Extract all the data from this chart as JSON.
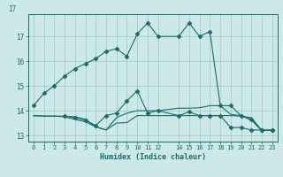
{
  "xlabel": "Humidex (Indice chaleur)",
  "bg_color": "#cde8e8",
  "grid_color": "#9fc8c8",
  "line_color": "#1a6b6b",
  "xlim": [
    -0.5,
    23.5
  ],
  "ylim": [
    12.75,
    17.9
  ],
  "xticks": [
    0,
    1,
    2,
    3,
    4,
    5,
    6,
    7,
    8,
    9,
    10,
    11,
    12,
    14,
    15,
    16,
    17,
    18,
    19,
    20,
    21,
    22,
    23
  ],
  "yticks": [
    13,
    14,
    15,
    16,
    17
  ],
  "ytop_label": "17",
  "series": [
    {
      "x": [
        0,
        1,
        2,
        3,
        4,
        5,
        6,
        7,
        8,
        9,
        10,
        11,
        12,
        14,
        15,
        16,
        17,
        18,
        19,
        20,
        21,
        22,
        23
      ],
      "y": [
        14.2,
        14.7,
        15.0,
        15.4,
        15.7,
        15.9,
        16.1,
        16.4,
        16.5,
        16.2,
        17.1,
        17.55,
        17.0,
        17.0,
        17.55,
        17.0,
        17.2,
        14.2,
        14.2,
        13.8,
        13.65,
        13.2,
        13.2
      ],
      "marker": "D",
      "markersize": 2.5
    },
    {
      "x": [
        0,
        1,
        2,
        3,
        4,
        5,
        6,
        7,
        8,
        9,
        10,
        11,
        12,
        14,
        15,
        16,
        17,
        18,
        19,
        20,
        21,
        22,
        23
      ],
      "y": [
        13.8,
        13.78,
        13.78,
        13.78,
        13.75,
        13.65,
        13.35,
        13.22,
        13.5,
        13.52,
        13.8,
        13.8,
        13.8,
        13.8,
        13.8,
        13.8,
        13.8,
        13.8,
        13.8,
        13.78,
        13.72,
        13.2,
        13.2
      ],
      "marker": null,
      "markersize": 0
    },
    {
      "x": [
        0,
        1,
        2,
        3,
        4,
        5,
        6,
        7,
        8,
        9,
        10,
        11,
        12,
        14,
        15,
        16,
        17,
        18,
        19,
        20,
        21,
        22,
        23
      ],
      "y": [
        13.8,
        13.78,
        13.78,
        13.75,
        13.65,
        13.55,
        13.35,
        13.22,
        13.72,
        13.9,
        14.0,
        14.0,
        14.0,
        14.1,
        14.1,
        14.12,
        14.2,
        14.2,
        13.85,
        13.8,
        13.62,
        13.2,
        13.2
      ],
      "marker": null,
      "markersize": 0
    },
    {
      "x": [
        3,
        4,
        5,
        6,
        7,
        8,
        9,
        10,
        11,
        12,
        14,
        15,
        16,
        17,
        18,
        19,
        20,
        21,
        22,
        23
      ],
      "y": [
        13.78,
        13.72,
        13.62,
        13.4,
        13.8,
        13.9,
        14.4,
        14.8,
        13.9,
        14.0,
        13.8,
        13.95,
        13.8,
        13.8,
        13.8,
        13.32,
        13.32,
        13.22,
        13.22,
        13.22
      ],
      "marker": "D",
      "markersize": 2.5
    }
  ]
}
